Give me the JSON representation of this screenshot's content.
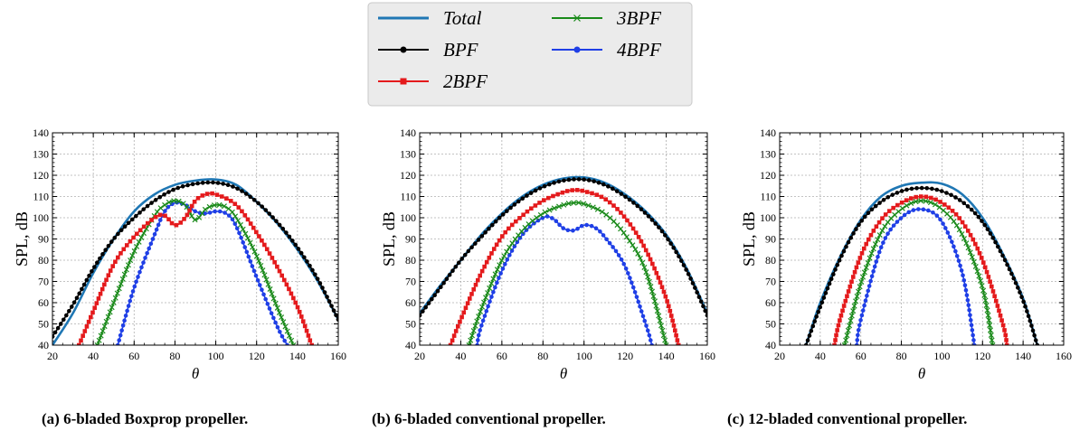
{
  "legend": {
    "entries": [
      {
        "label": "Total",
        "color": "#1f77b4",
        "marker": "none"
      },
      {
        "label": "BPF",
        "color": "#000000",
        "marker": "circle"
      },
      {
        "label": "2BPF",
        "color": "#e41a1c",
        "marker": "square"
      },
      {
        "label": "3BPF",
        "color": "#1a8a1a",
        "marker": "x"
      },
      {
        "label": "4BPF",
        "color": "#1f3fe6",
        "marker": "circle"
      }
    ]
  },
  "chart_data": [
    {
      "type": "line",
      "caption": "(a) 6-bladed Boxprop propeller.",
      "xlabel": "θ",
      "ylabel": "SPL, dB",
      "xlim": [
        20,
        160
      ],
      "ylim": [
        40,
        140
      ],
      "xticks": [
        20,
        40,
        60,
        80,
        100,
        120,
        140,
        160
      ],
      "yticks": [
        40,
        50,
        60,
        70,
        80,
        90,
        100,
        110,
        120,
        130,
        140
      ],
      "grid": true,
      "series": [
        {
          "name": "Total",
          "x": [
            20,
            30,
            40,
            50,
            60,
            70,
            80,
            90,
            100,
            110,
            120,
            130,
            140,
            150,
            160
          ],
          "y": [
            40,
            55,
            74,
            90,
            103,
            111,
            115.5,
            117.5,
            118,
            115.5,
            107.5,
            97.5,
            85,
            70,
            52
          ]
        },
        {
          "name": "BPF",
          "x": [
            20,
            30,
            40,
            50,
            60,
            70,
            80,
            90,
            100,
            110,
            120,
            130,
            140,
            150,
            160
          ],
          "y": [
            44,
            59,
            76,
            90,
            100,
            108,
            113.5,
            116,
            116.5,
            114,
            107.5,
            98,
            86,
            71,
            52
          ]
        },
        {
          "name": "2BPF",
          "x": [
            33,
            40,
            50,
            60,
            70,
            75,
            80,
            85,
            90,
            95,
            100,
            110,
            120,
            130,
            140,
            147
          ],
          "y": [
            40,
            56,
            78,
            91,
            100,
            101,
            96.5,
            100,
            108,
            111,
            111,
            106,
            93,
            77,
            58,
            40
          ]
        },
        {
          "name": "3BPF",
          "x": [
            42,
            50,
            60,
            70,
            75,
            80,
            85,
            90,
            95,
            100,
            105,
            110,
            120,
            130,
            138
          ],
          "y": [
            40,
            60,
            84,
            101,
            106,
            108,
            106,
            99,
            104,
            106,
            105,
            100,
            82,
            58,
            40
          ]
        },
        {
          "name": "4BPF",
          "x": [
            52,
            60,
            70,
            75,
            80,
            85,
            90,
            95,
            100,
            105,
            110,
            120,
            130,
            135
          ],
          "y": [
            40,
            67,
            92,
            103,
            107,
            106,
            103,
            102,
            103,
            102,
            96,
            72,
            49,
            40
          ]
        }
      ]
    },
    {
      "type": "line",
      "caption": "(b) 6-bladed conventional propeller.",
      "xlabel": "θ",
      "ylabel": "SPL, dB",
      "xlim": [
        20,
        160
      ],
      "ylim": [
        40,
        140
      ],
      "xticks": [
        20,
        40,
        60,
        80,
        100,
        120,
        140,
        160
      ],
      "yticks": [
        40,
        50,
        60,
        70,
        80,
        90,
        100,
        110,
        120,
        130,
        140
      ],
      "grid": true,
      "series": [
        {
          "name": "Total",
          "x": [
            20,
            30,
            40,
            50,
            60,
            70,
            80,
            90,
            100,
            110,
            120,
            130,
            140,
            150,
            160
          ],
          "y": [
            55,
            68,
            80,
            92,
            102,
            110,
            115.5,
            118.5,
            119,
            116.5,
            111,
            103,
            92,
            76,
            55
          ]
        },
        {
          "name": "BPF",
          "x": [
            20,
            30,
            40,
            50,
            60,
            70,
            80,
            90,
            100,
            110,
            120,
            130,
            140,
            150,
            160
          ],
          "y": [
            54,
            67,
            80,
            91,
            101,
            109,
            114.5,
            117.5,
            118,
            115.5,
            110,
            102,
            91,
            75,
            54
          ]
        },
        {
          "name": "2BPF",
          "x": [
            35,
            40,
            50,
            60,
            70,
            80,
            90,
            95,
            100,
            110,
            120,
            130,
            140,
            146
          ],
          "y": [
            40,
            52,
            74,
            91,
            101,
            108,
            112,
            113,
            112.5,
            109,
            100,
            85,
            62,
            40
          ]
        },
        {
          "name": "3BPF",
          "x": [
            44,
            50,
            60,
            70,
            80,
            90,
            95,
            100,
            110,
            120,
            130,
            140
          ],
          "y": [
            40,
            57,
            80,
            94,
            102,
            106,
            107,
            106.5,
            102,
            92,
            75,
            40
          ]
        },
        {
          "name": "4BPF",
          "x": [
            48,
            50,
            60,
            70,
            80,
            85,
            90,
            95,
            100,
            105,
            110,
            120,
            130,
            133
          ],
          "y": [
            40,
            49,
            75,
            92,
            100,
            99.5,
            95,
            94,
            96.5,
            95.5,
            91,
            77,
            50,
            40
          ]
        }
      ]
    },
    {
      "type": "line",
      "caption": "(c) 12-bladed conventional propeller.",
      "xlabel": "θ",
      "ylabel": "SPL, dB",
      "xlim": [
        20,
        160
      ],
      "ylim": [
        40,
        140
      ],
      "xticks": [
        20,
        40,
        60,
        80,
        100,
        120,
        140,
        160
      ],
      "yticks": [
        40,
        50,
        60,
        70,
        80,
        90,
        100,
        110,
        120,
        130,
        140
      ],
      "grid": true,
      "series": [
        {
          "name": "Total",
          "x": [
            33,
            40,
            50,
            60,
            70,
            80,
            90,
            100,
            110,
            120,
            130,
            140,
            147
          ],
          "y": [
            40,
            60,
            82,
            99,
            110,
            115,
            116.5,
            116,
            111,
            100,
            83,
            62,
            40
          ]
        },
        {
          "name": "BPF",
          "x": [
            33,
            40,
            50,
            60,
            70,
            80,
            90,
            100,
            110,
            120,
            130,
            140,
            147
          ],
          "y": [
            40,
            58,
            81,
            98,
            107.5,
            112.5,
            114,
            112.5,
            107.5,
            98,
            82,
            61,
            40
          ]
        },
        {
          "name": "2BPF",
          "x": [
            47,
            50,
            60,
            70,
            80,
            90,
            100,
            110,
            120,
            130,
            132
          ],
          "y": [
            40,
            53,
            82,
            99,
            107,
            110,
            107,
            98,
            80,
            50,
            40
          ]
        },
        {
          "name": "3BPF",
          "x": [
            52,
            60,
            70,
            80,
            90,
            100,
            110,
            120,
            125
          ],
          "y": [
            40,
            69,
            93,
            104,
            108,
            104,
            92,
            67,
            40
          ]
        },
        {
          "name": "4BPF",
          "x": [
            58,
            60,
            70,
            80,
            90,
            100,
            110,
            116
          ],
          "y": [
            40,
            52,
            86,
            100,
            104,
            98,
            74,
            40
          ]
        }
      ]
    }
  ]
}
